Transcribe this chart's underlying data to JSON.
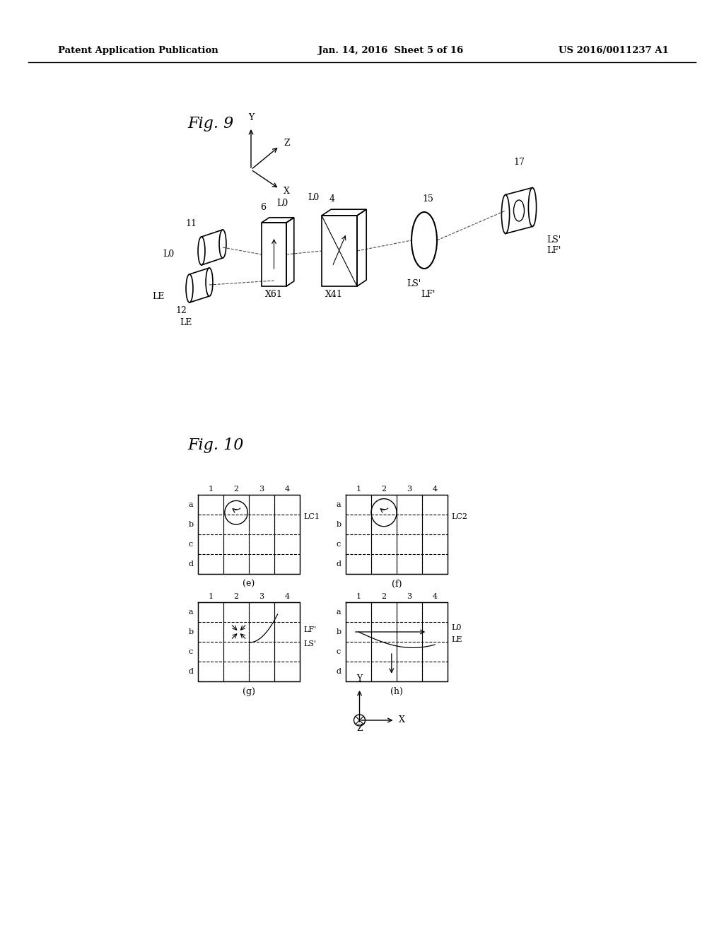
{
  "background_color": "#ffffff",
  "header_left": "Patent Application Publication",
  "header_center": "Jan. 14, 2016  Sheet 5 of 16",
  "header_right": "US 2016/0011237 A1",
  "fig9_label": "Fig. 9",
  "fig10_label": "Fig. 10"
}
